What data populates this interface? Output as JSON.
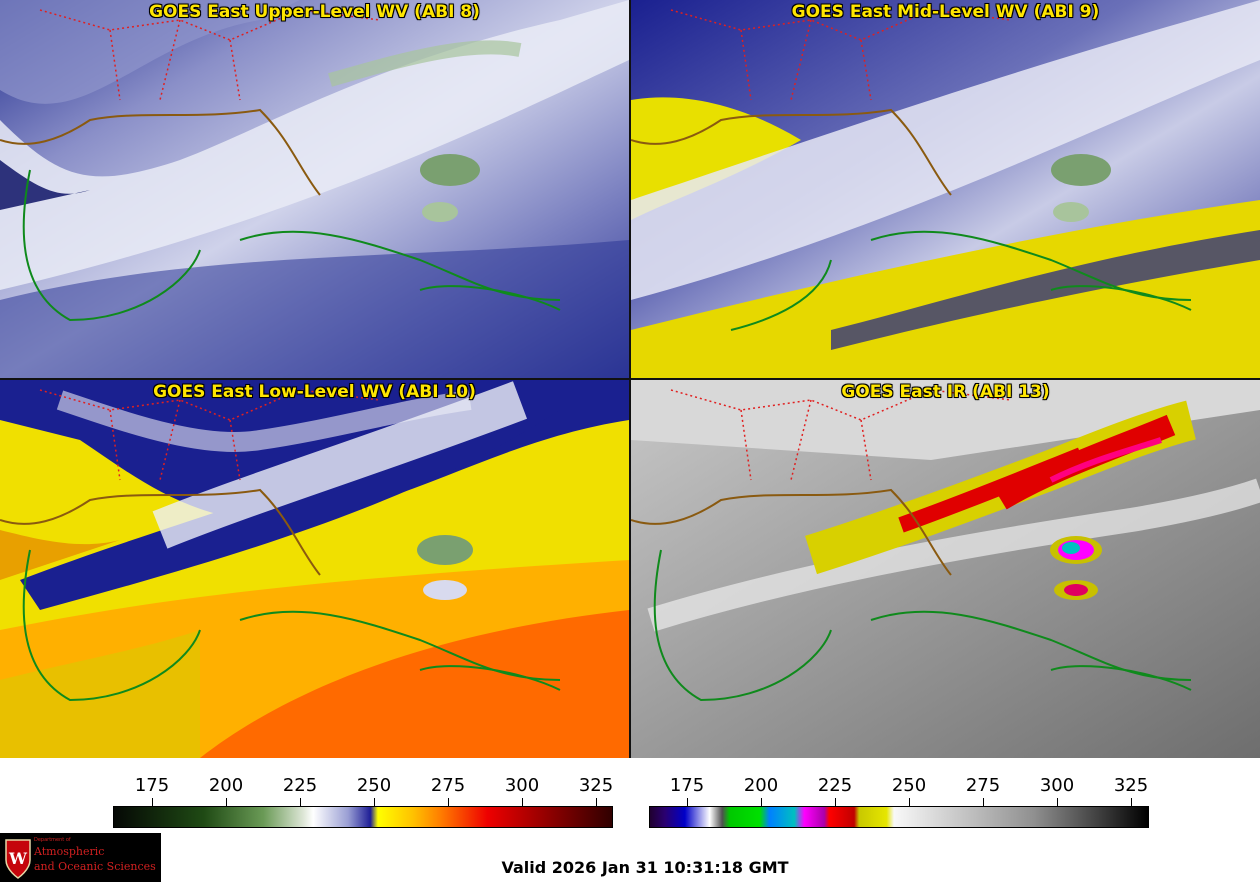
{
  "panels": [
    {
      "title": "GOES East Upper-Level WV (ABI 8)"
    },
    {
      "title": "GOES East Mid-Level WV (ABI 9)"
    },
    {
      "title": "GOES East Low-Level WV (ABI 10)"
    },
    {
      "title": "GOES East IR (ABI 13)"
    }
  ],
  "colorbar_left": {
    "ticks": [
      "175",
      "200",
      "225",
      "250",
      "275",
      "300",
      "325"
    ]
  },
  "colorbar_right": {
    "ticks": [
      "175",
      "200",
      "225",
      "250",
      "275",
      "300",
      "325"
    ]
  },
  "valid_time": "Valid 2026 Jan 31 10:31:18 GMT",
  "logo": {
    "line1": "Department of",
    "line2": "Atmospheric",
    "line3": "and Oceanic Sciences"
  },
  "colors": {
    "title": "#ffe600",
    "borders": "#e02020",
    "coast": "#0f8a1c"
  }
}
